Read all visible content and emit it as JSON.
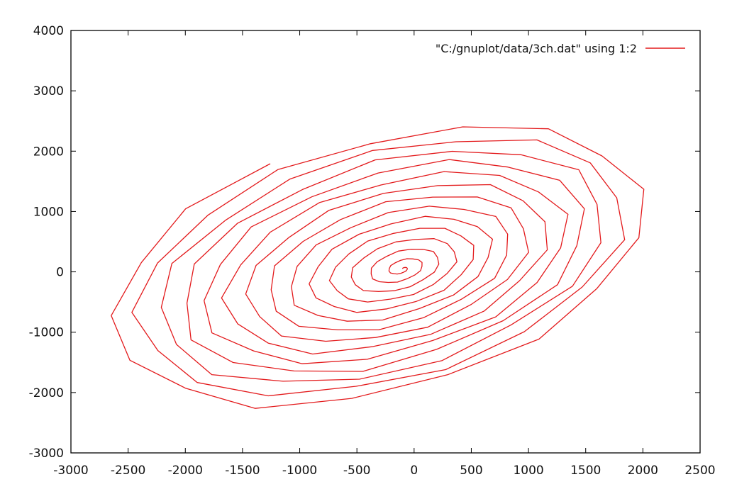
{
  "chart_data": {
    "type": "line",
    "title": "",
    "xlabel": "",
    "ylabel": "",
    "xlim": [
      -3000,
      2500
    ],
    "ylim": [
      -3000,
      4000
    ],
    "xticks": [
      -3000,
      -2500,
      -2000,
      -1500,
      -1000,
      -500,
      0,
      500,
      1000,
      1500,
      2000,
      2500
    ],
    "yticks": [
      -3000,
      -2000,
      -1000,
      0,
      1000,
      2000,
      3000,
      4000
    ],
    "grid": false,
    "legend": {
      "placement": "top-right"
    },
    "series": [
      {
        "name": "\"C:/gnuplot/data/3ch.dat\" using 1:2",
        "color": "#e31a1c",
        "shape": "inward spiral of about 14 turns, centred near (-100, 50)",
        "outer_extent": {
          "x": [
            -2650,
            2120
          ],
          "y": [
            -2720,
            3020
          ]
        },
        "center": [
          -100,
          50
        ],
        "turns": 14
      }
    ]
  }
}
